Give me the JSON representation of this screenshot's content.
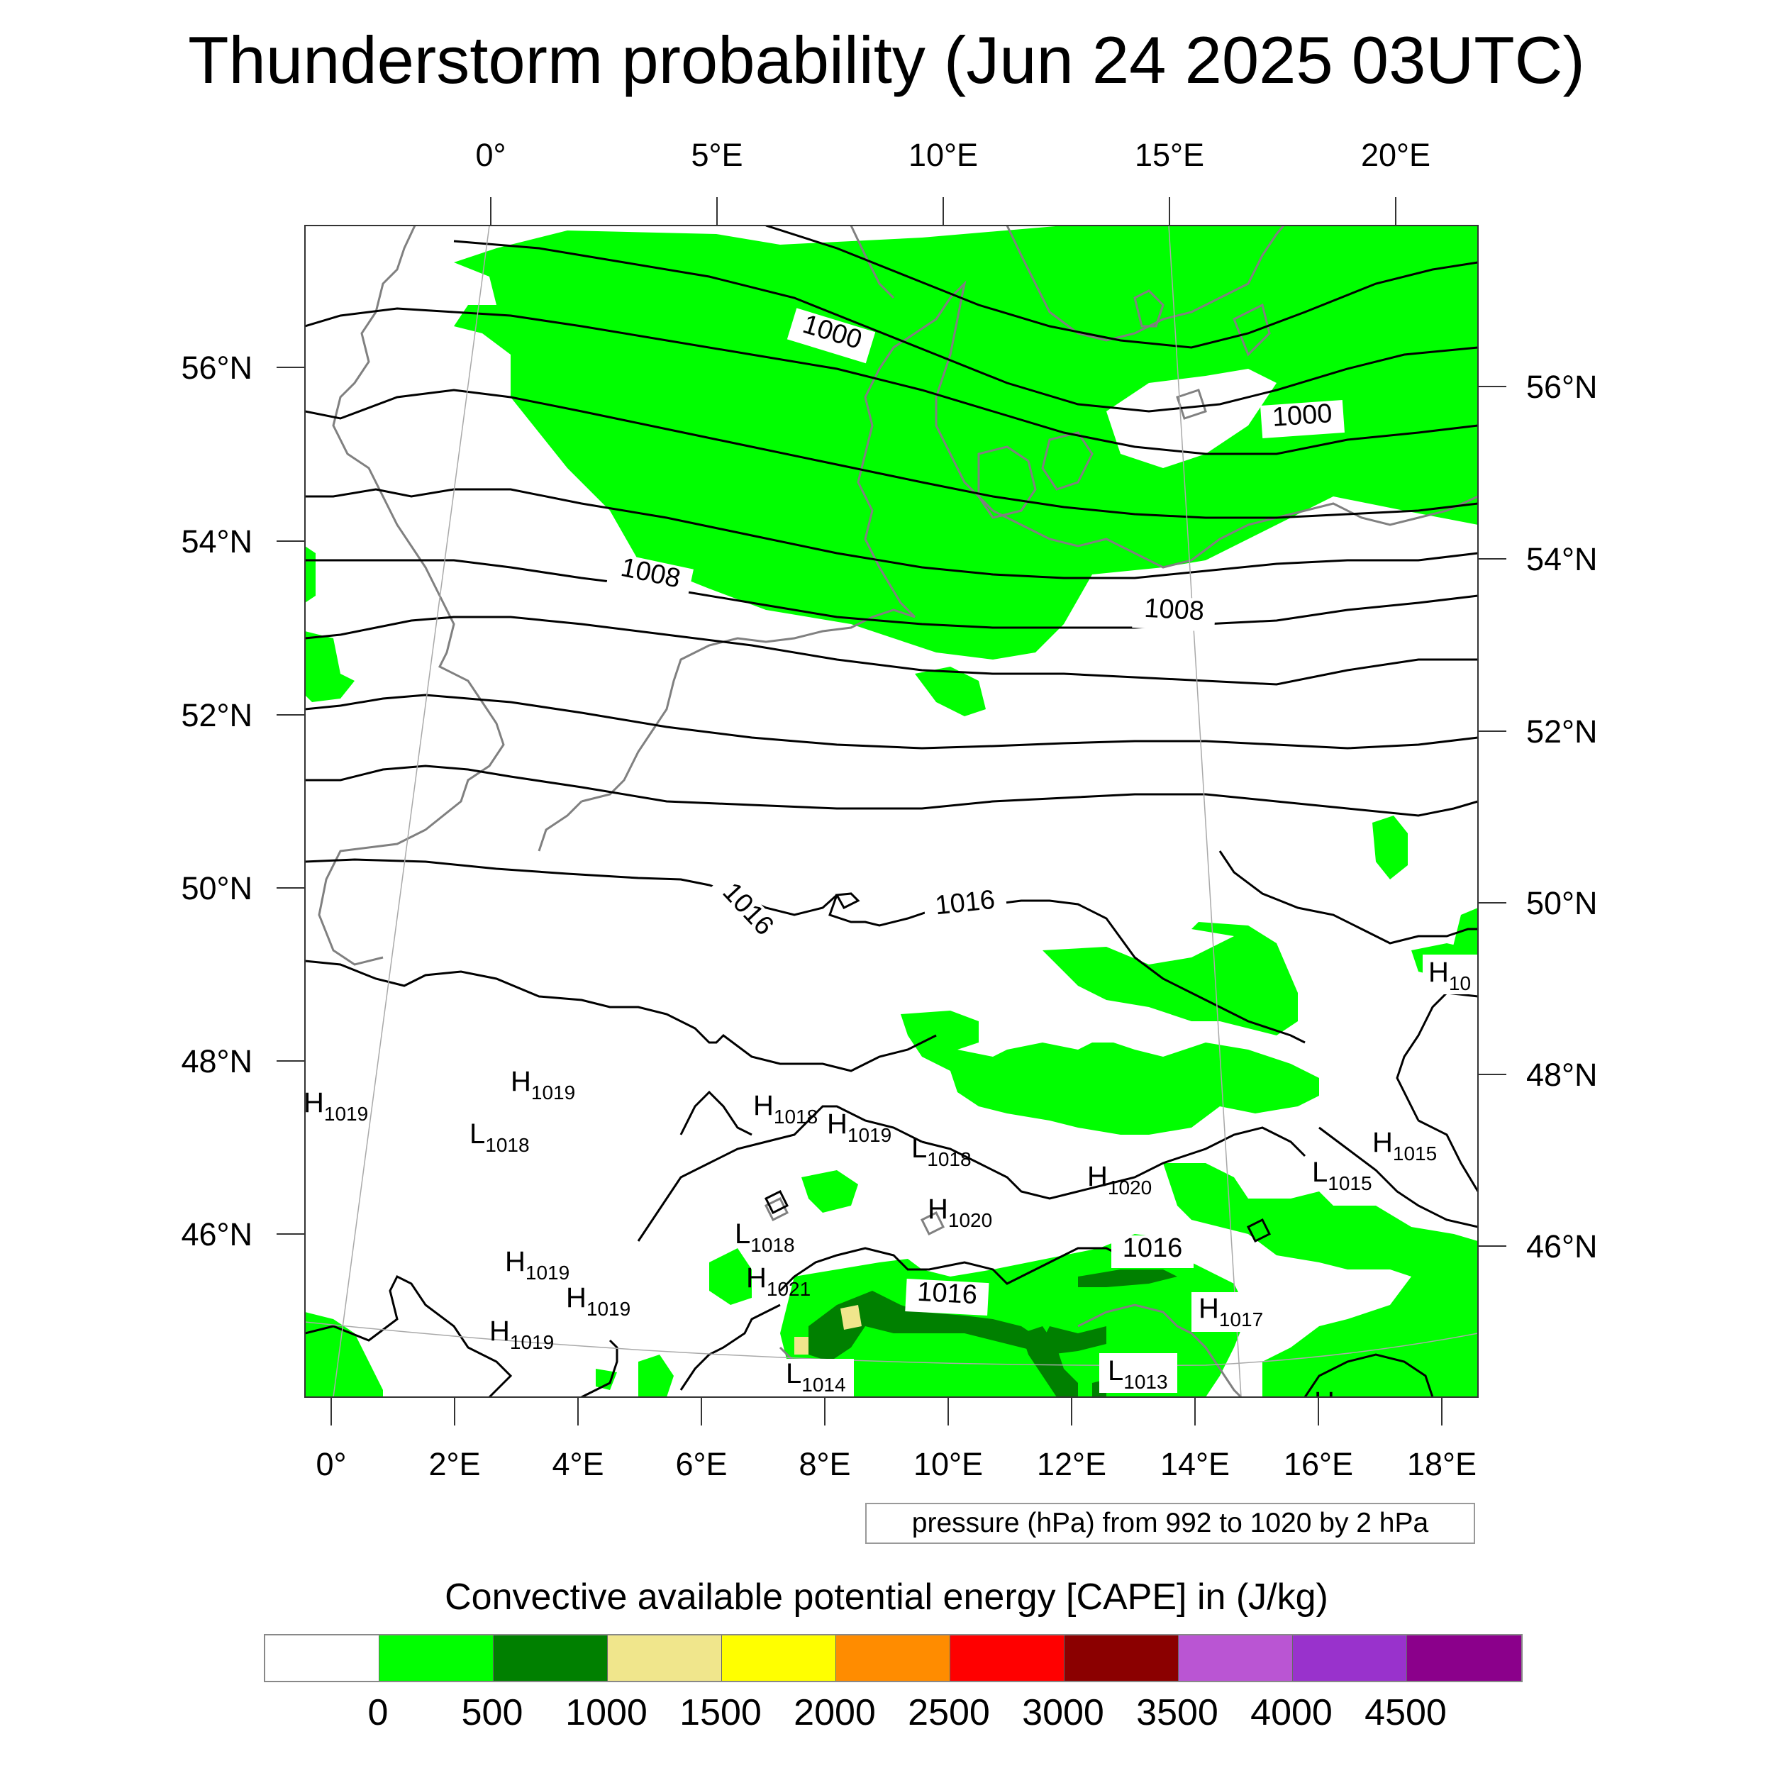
{
  "title": "Thunderstorm probability (Jun 24 2025 03UTC)",
  "map": {
    "top_lon_labels": [
      "0°",
      "5°E",
      "10°E",
      "15°E",
      "20°E"
    ],
    "bottom_lon_labels": [
      "0°",
      "2°E",
      "4°E",
      "6°E",
      "8°E",
      "10°E",
      "12°E",
      "14°E",
      "16°E",
      "18°E"
    ],
    "left_lat_labels": [
      "56°N",
      "54°N",
      "52°N",
      "50°N",
      "48°N",
      "46°N"
    ],
    "right_lat_labels": [
      "56°N",
      "54°N",
      "52°N",
      "50°N",
      "48°N",
      "46°N"
    ],
    "contour_labels": [
      "1000",
      "1000",
      "1008",
      "1008",
      "1016",
      "1016",
      "1016",
      "1016"
    ],
    "pressure_centers": [
      {
        "type": "H",
        "value": "1019"
      },
      {
        "type": "H",
        "value": "1019"
      },
      {
        "type": "L",
        "value": "1018"
      },
      {
        "type": "H",
        "value": "1018"
      },
      {
        "type": "H",
        "value": "1019"
      },
      {
        "type": "L",
        "value": "1018"
      },
      {
        "type": "H",
        "value": "1020"
      },
      {
        "type": "H",
        "value": "1020"
      },
      {
        "type": "L",
        "value": "1018"
      },
      {
        "type": "H",
        "value": "1019"
      },
      {
        "type": "H",
        "value": "1021"
      },
      {
        "type": "H",
        "value": "1019"
      },
      {
        "type": "H",
        "value": "1019"
      },
      {
        "type": "L",
        "value": "1014"
      },
      {
        "type": "L",
        "value": "1013"
      },
      {
        "type": "H",
        "value": "1017"
      },
      {
        "type": "L",
        "value": "1015"
      },
      {
        "type": "H",
        "value": "1015"
      },
      {
        "type": "H",
        "value": "10"
      }
    ],
    "colors": {
      "cape_green": "#00ff00",
      "cape_darkgreen": "#008000",
      "cape_khaki": "#f0e68c",
      "coastline": "#808080",
      "isobar": "#000000"
    }
  },
  "pressure_note": "pressure (hPa) from 992 to 1020 by 2 hPa",
  "colorbar": {
    "title": "Convective available potential energy [CAPE] in (J/kg)",
    "colors": [
      "#ffffff",
      "#00ff00",
      "#008000",
      "#f0e68c",
      "#ffff00",
      "#ff8c00",
      "#ff0000",
      "#8b0000",
      "#ba55d3",
      "#9932cc",
      "#8b008b"
    ],
    "labels": [
      "0",
      "500",
      "1000",
      "1500",
      "2000",
      "2500",
      "3000",
      "3500",
      "4000",
      "4500"
    ]
  }
}
